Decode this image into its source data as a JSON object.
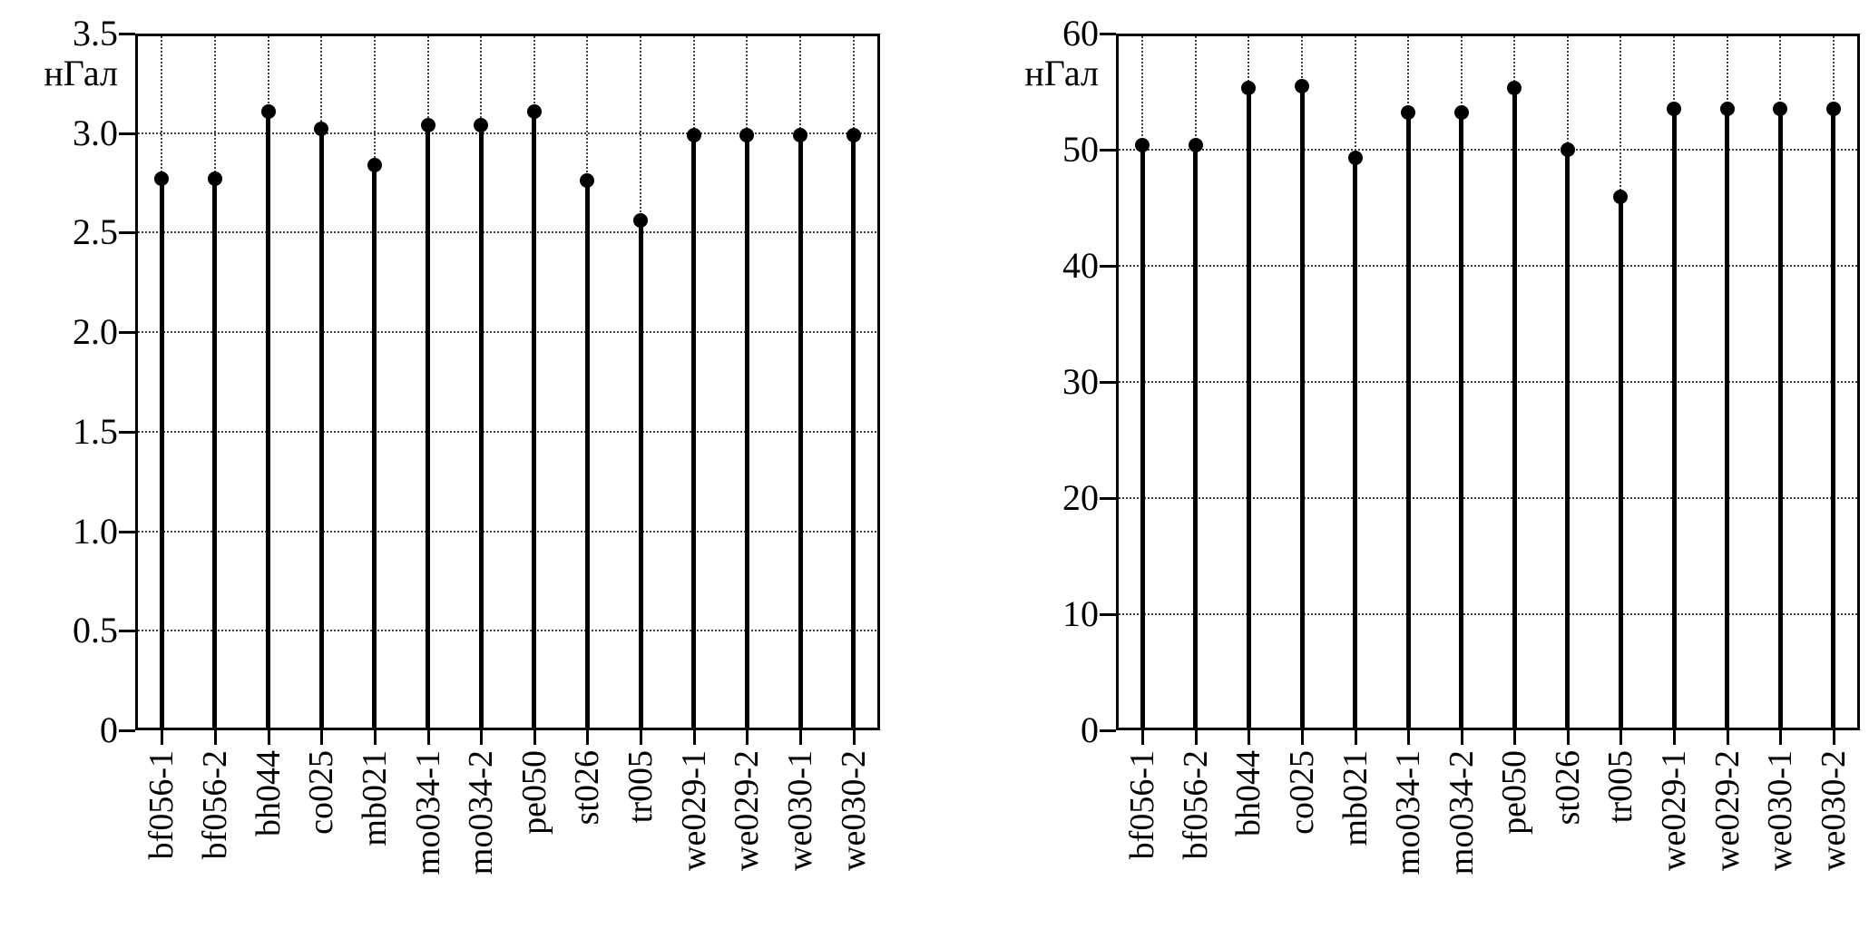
{
  "page": {
    "background": "#ffffff"
  },
  "chart_data": [
    {
      "type": "stem",
      "ylabel": "нГал",
      "title": "",
      "categories": [
        "bf056-1",
        "bf056-2",
        "bh044",
        "co025",
        "mb021",
        "mo034-1",
        "mo034-2",
        "pe050",
        "st026",
        "tr005",
        "we029-1",
        "we029-2",
        "we030-1",
        "we030-2"
      ],
      "values": [
        2.77,
        2.77,
        3.11,
        3.02,
        2.84,
        3.04,
        3.04,
        3.11,
        2.76,
        2.56,
        2.99,
        2.99,
        2.99,
        2.99
      ],
      "ylim": [
        0,
        3.5
      ],
      "yticks": [
        0,
        0.5,
        1.0,
        1.5,
        2.0,
        2.5,
        3.0,
        3.5
      ],
      "ytick_labels": [
        "0",
        "0.5",
        "1.0",
        "1.5",
        "2.0",
        "2.5",
        "3.0",
        "3.5"
      ],
      "grid": true,
      "legend": "none",
      "marker": "filled-circle",
      "colors": {
        "stem": "#000000",
        "marker": "#000000",
        "grid": "#3f3f3f",
        "frame": "#000000"
      }
    },
    {
      "type": "stem",
      "ylabel": "нГал",
      "title": "",
      "categories": [
        "bf056-1",
        "bf056-2",
        "bh044",
        "co025",
        "mb021",
        "mo034-1",
        "mo034-2",
        "pe050",
        "st026",
        "tr005",
        "we029-1",
        "we029-2",
        "we030-1",
        "we030-2"
      ],
      "values": [
        50.4,
        50.4,
        55.3,
        55.5,
        49.3,
        53.2,
        53.2,
        55.3,
        50.0,
        45.9,
        53.5,
        53.5,
        53.5,
        53.5
      ],
      "ylim": [
        0,
        60
      ],
      "yticks": [
        0,
        10,
        20,
        30,
        40,
        50,
        60
      ],
      "ytick_labels": [
        "0",
        "10",
        "20",
        "30",
        "40",
        "50",
        "60"
      ],
      "grid": true,
      "legend": "none",
      "marker": "filled-circle",
      "colors": {
        "stem": "#000000",
        "marker": "#000000",
        "grid": "#3f3f3f",
        "frame": "#000000"
      }
    }
  ]
}
